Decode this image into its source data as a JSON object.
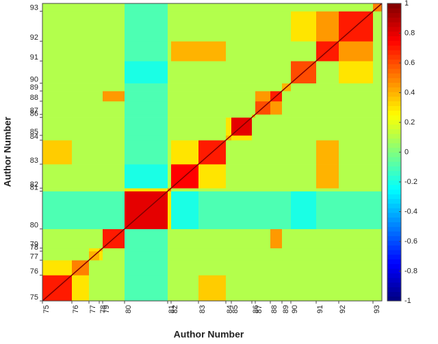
{
  "chart_data": {
    "type": "heatmap",
    "xlabel": "Author Number",
    "ylabel": "Author Number",
    "categories": [
      "75",
      "76",
      "77",
      "78",
      "79",
      "80",
      "81",
      "82",
      "83",
      "84",
      "85",
      "86",
      "87",
      "88",
      "89",
      "90",
      "91",
      "92",
      "93"
    ],
    "bins": [
      0,
      43,
      68,
      83,
      88,
      120,
      183,
      188,
      228,
      268,
      276,
      306,
      311,
      333,
      350,
      363,
      400,
      433,
      483,
      496
    ],
    "values": [
      [
        0.7,
        0.3,
        0.1,
        0.1,
        0.1,
        -0.1,
        0.1,
        0.1,
        0.35,
        0.1,
        0.1,
        0.1,
        0.1,
        0.1,
        0.1,
        0.1,
        0.1,
        0.1,
        0.1
      ],
      [
        0.3,
        0.5,
        0.1,
        0.1,
        0.1,
        -0.1,
        0.1,
        0.1,
        0.1,
        0.1,
        0.1,
        0.1,
        0.1,
        0.1,
        0.1,
        0.1,
        0.1,
        0.1,
        0.1
      ],
      [
        0.1,
        0.1,
        0.4,
        0.3,
        0.1,
        -0.1,
        0.1,
        0.1,
        0.1,
        0.1,
        0.1,
        0.1,
        0.1,
        0.1,
        0.1,
        0.1,
        0.1,
        0.1,
        0.1
      ],
      [
        0.1,
        0.1,
        0.3,
        0.4,
        0.1,
        -0.1,
        0.1,
        0.1,
        0.1,
        0.1,
        0.1,
        0.1,
        0.1,
        0.1,
        0.1,
        0.1,
        0.1,
        0.1,
        0.1
      ],
      [
        0.1,
        0.1,
        0.1,
        0.1,
        0.7,
        -0.1,
        0.1,
        0.1,
        0.1,
        0.1,
        0.1,
        0.1,
        0.1,
        0.45,
        0.1,
        0.1,
        0.1,
        0.1,
        0.1
      ],
      [
        -0.1,
        -0.1,
        -0.1,
        -0.1,
        -0.1,
        0.8,
        0.3,
        -0.2,
        -0.1,
        -0.1,
        -0.1,
        -0.1,
        -0.1,
        -0.1,
        -0.1,
        -0.2,
        -0.1,
        -0.1,
        -0.1
      ],
      [
        0.1,
        0.1,
        0.1,
        0.1,
        0.1,
        0.3,
        0.5,
        0.1,
        0.1,
        0.1,
        0.1,
        0.1,
        0.1,
        0.1,
        0.1,
        0.1,
        0.1,
        0.1,
        0.1
      ],
      [
        0.1,
        0.1,
        0.1,
        0.1,
        0.1,
        -0.2,
        0.1,
        0.75,
        0.3,
        0.1,
        0.1,
        0.1,
        0.1,
        0.1,
        0.1,
        0.1,
        0.4,
        0.1,
        0.1
      ],
      [
        0.35,
        0.1,
        0.1,
        0.1,
        0.1,
        -0.1,
        0.1,
        0.3,
        0.7,
        0.1,
        0.1,
        0.1,
        0.1,
        0.1,
        0.1,
        0.1,
        0.4,
        0.1,
        0.1
      ],
      [
        0.1,
        0.1,
        0.1,
        0.1,
        0.1,
        -0.1,
        0.1,
        0.1,
        0.1,
        0.4,
        0.3,
        0.1,
        0.1,
        0.1,
        0.1,
        0.1,
        0.1,
        0.1,
        0.1
      ],
      [
        0.1,
        0.1,
        0.1,
        0.1,
        0.1,
        -0.1,
        0.1,
        0.1,
        0.1,
        0.3,
        0.8,
        0.1,
        0.1,
        0.1,
        0.1,
        0.1,
        0.1,
        0.1,
        0.1
      ],
      [
        0.1,
        0.1,
        0.1,
        0.1,
        0.1,
        -0.1,
        0.1,
        0.1,
        0.1,
        0.1,
        0.1,
        0.4,
        0.1,
        0.1,
        0.1,
        0.1,
        0.1,
        0.1,
        0.1
      ],
      [
        0.1,
        0.1,
        0.1,
        0.1,
        0.1,
        -0.1,
        0.1,
        0.1,
        0.1,
        0.1,
        0.1,
        0.1,
        0.6,
        0.45,
        0.1,
        0.1,
        0.1,
        0.1,
        0.1
      ],
      [
        0.1,
        0.1,
        0.1,
        0.1,
        0.45,
        -0.1,
        0.1,
        0.1,
        0.1,
        0.1,
        0.1,
        0.1,
        0.45,
        0.7,
        0.1,
        0.1,
        0.1,
        0.1,
        0.1
      ],
      [
        0.1,
        0.1,
        0.1,
        0.1,
        0.1,
        -0.1,
        0.1,
        0.1,
        0.1,
        0.1,
        0.1,
        0.1,
        0.1,
        0.1,
        0.4,
        0.1,
        0.1,
        0.1,
        0.1
      ],
      [
        0.1,
        0.1,
        0.1,
        0.1,
        0.1,
        -0.2,
        0.1,
        0.1,
        0.1,
        0.1,
        0.1,
        0.1,
        0.1,
        0.1,
        0.1,
        0.6,
        0.1,
        0.3,
        0.1
      ],
      [
        0.1,
        0.1,
        0.1,
        0.1,
        0.1,
        -0.1,
        0.1,
        0.4,
        0.4,
        0.1,
        0.1,
        0.1,
        0.1,
        0.1,
        0.1,
        0.1,
        0.7,
        0.45,
        0.1
      ],
      [
        0.1,
        0.1,
        0.1,
        0.1,
        0.1,
        -0.1,
        0.1,
        0.1,
        0.1,
        0.1,
        0.1,
        0.1,
        0.1,
        0.1,
        0.1,
        0.3,
        0.45,
        0.7,
        0.1
      ],
      [
        0.1,
        0.1,
        0.1,
        0.1,
        0.1,
        -0.1,
        0.1,
        0.1,
        0.1,
        0.1,
        0.1,
        0.1,
        0.1,
        0.1,
        0.1,
        0.1,
        0.1,
        0.1,
        0.5
      ]
    ],
    "colormap": "jet",
    "clim": [
      -1,
      1
    ],
    "cticks": [
      -1,
      -0.8,
      -0.6,
      -0.4,
      -0.2,
      0,
      0.2,
      0.4,
      0.6,
      0.8,
      1
    ]
  }
}
